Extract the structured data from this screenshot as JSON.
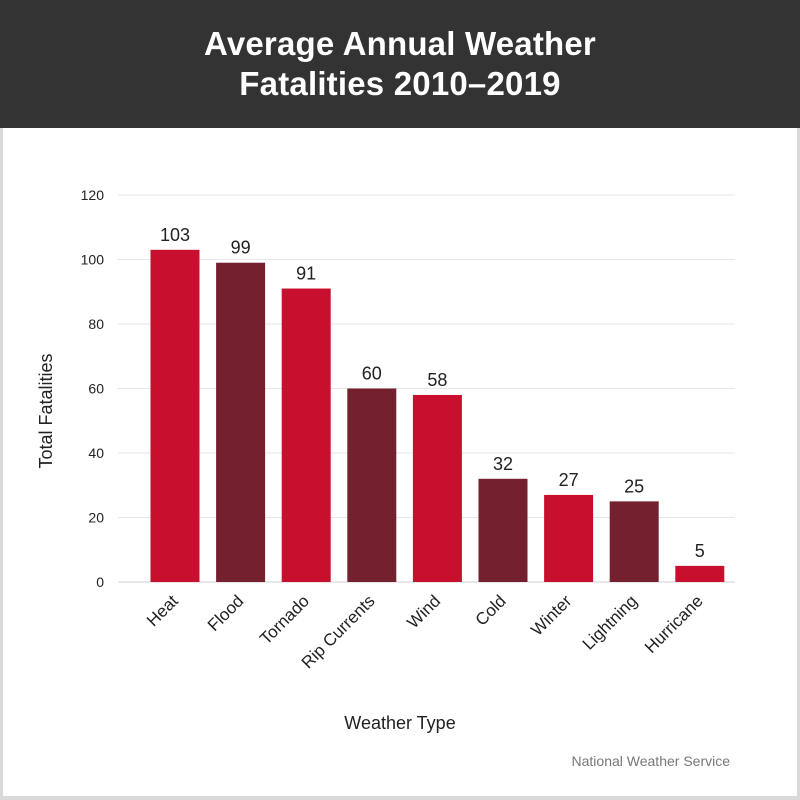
{
  "header": {
    "title": "Average Annual Weather Fatalities 2010–2019"
  },
  "source": "National Weather Service",
  "colors": {
    "header_bg": "#333333",
    "bar_red": "#c8102e",
    "bar_maroon": "#75202e",
    "grid": "#e6e6e6",
    "text": "#222222"
  },
  "chart_data": {
    "type": "bar",
    "categories": [
      "Heat",
      "Flood",
      "Tornado",
      "Rip Currents",
      "Wind",
      "Cold",
      "Winter",
      "Lightning",
      "Hurricane"
    ],
    "values": [
      103,
      99,
      91,
      60,
      58,
      32,
      27,
      25,
      5
    ],
    "bar_colors": [
      "#c8102e",
      "#75202e",
      "#c8102e",
      "#75202e",
      "#c8102e",
      "#75202e",
      "#c8102e",
      "#75202e",
      "#c8102e"
    ],
    "title": "Average Annual Weather Fatalities 2010–2019",
    "xlabel": "Weather Type",
    "ylabel": "Total Fatalities",
    "ylim": [
      0,
      120
    ],
    "yticks": [
      0,
      20,
      40,
      60,
      80,
      100,
      120
    ],
    "grid": true,
    "data_labels": true
  }
}
